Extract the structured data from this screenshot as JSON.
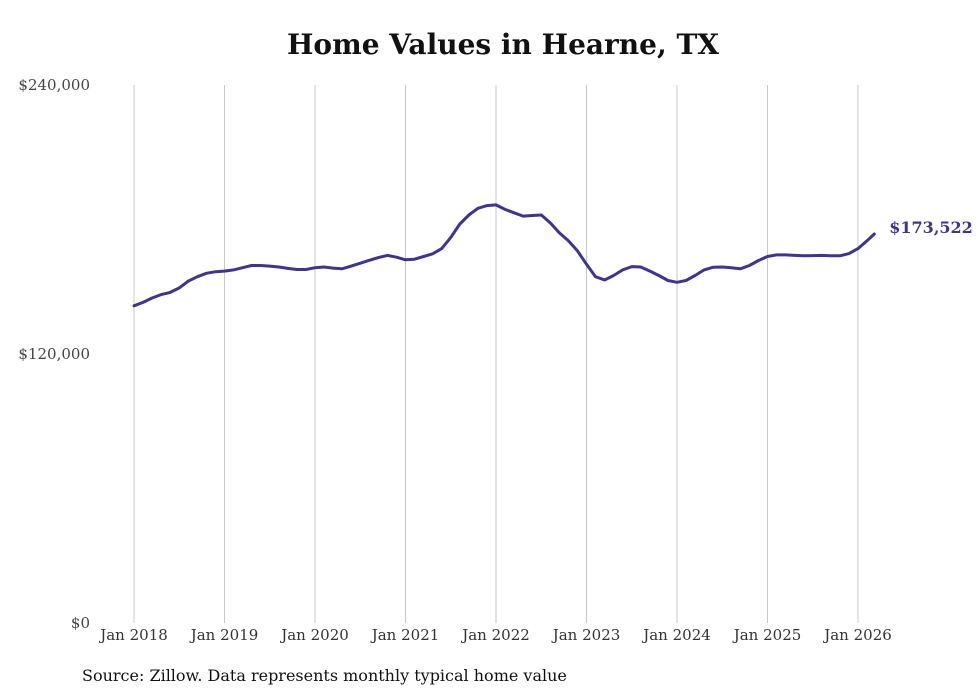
{
  "chart_data": {
    "type": "line",
    "title": "Home Values in Hearne, TX",
    "source": "Source: Zillow. Data represents monthly typical home value",
    "ylim": [
      0,
      240000
    ],
    "xlim": [
      2018.0,
      2026.0
    ],
    "y_ticks": [
      {
        "value": 0,
        "label": "$0"
      },
      {
        "value": 120000,
        "label": "$120,000"
      },
      {
        "value": 240000,
        "label": "$240,000"
      }
    ],
    "x_ticks": [
      {
        "value": 2018,
        "label": "Jan 2018"
      },
      {
        "value": 2019,
        "label": "Jan 2019"
      },
      {
        "value": 2020,
        "label": "Jan 2020"
      },
      {
        "value": 2021,
        "label": "Jan 2021"
      },
      {
        "value": 2022,
        "label": "Jan 2022"
      },
      {
        "value": 2023,
        "label": "Jan 2023"
      },
      {
        "value": 2024,
        "label": "Jan 2024"
      },
      {
        "value": 2025,
        "label": "Jan 2025"
      },
      {
        "value": 2026,
        "label": "Jan 2026"
      }
    ],
    "grid": "vertical",
    "series": [
      {
        "name": "Home value",
        "color": "#3d3591",
        "end_label": "$173,522",
        "points": [
          [
            2018.0,
            141500
          ],
          [
            2018.1,
            143000
          ],
          [
            2018.2,
            145000
          ],
          [
            2018.3,
            146500
          ],
          [
            2018.4,
            147500
          ],
          [
            2018.5,
            149500
          ],
          [
            2018.6,
            152500
          ],
          [
            2018.7,
            154500
          ],
          [
            2018.8,
            156000
          ],
          [
            2018.9,
            156700
          ],
          [
            2019.0,
            157000
          ],
          [
            2019.1,
            157500
          ],
          [
            2019.2,
            158500
          ],
          [
            2019.3,
            159500
          ],
          [
            2019.4,
            159500
          ],
          [
            2019.5,
            159200
          ],
          [
            2019.6,
            158800
          ],
          [
            2019.7,
            158200
          ],
          [
            2019.8,
            157700
          ],
          [
            2019.9,
            157700
          ],
          [
            2020.0,
            158500
          ],
          [
            2020.1,
            158800
          ],
          [
            2020.2,
            158300
          ],
          [
            2020.3,
            158000
          ],
          [
            2020.4,
            159200
          ],
          [
            2020.5,
            160500
          ],
          [
            2020.6,
            161800
          ],
          [
            2020.7,
            163000
          ],
          [
            2020.8,
            164000
          ],
          [
            2020.9,
            163200
          ],
          [
            2021.0,
            162000
          ],
          [
            2021.1,
            162300
          ],
          [
            2021.2,
            163500
          ],
          [
            2021.3,
            164700
          ],
          [
            2021.4,
            167000
          ],
          [
            2021.5,
            172000
          ],
          [
            2021.6,
            178000
          ],
          [
            2021.7,
            182000
          ],
          [
            2021.8,
            185000
          ],
          [
            2021.9,
            186200
          ],
          [
            2022.0,
            186500
          ],
          [
            2022.1,
            184500
          ],
          [
            2022.2,
            183000
          ],
          [
            2022.3,
            181500
          ],
          [
            2022.4,
            181800
          ],
          [
            2022.5,
            182000
          ],
          [
            2022.6,
            178500
          ],
          [
            2022.7,
            174000
          ],
          [
            2022.8,
            170500
          ],
          [
            2022.9,
            166000
          ],
          [
            2023.0,
            160000
          ],
          [
            2023.1,
            154500
          ],
          [
            2023.2,
            153000
          ],
          [
            2023.3,
            155000
          ],
          [
            2023.4,
            157500
          ],
          [
            2023.5,
            159000
          ],
          [
            2023.6,
            158800
          ],
          [
            2023.7,
            157000
          ],
          [
            2023.8,
            155000
          ],
          [
            2023.9,
            152800
          ],
          [
            2024.0,
            152000
          ],
          [
            2024.1,
            152800
          ],
          [
            2024.2,
            155000
          ],
          [
            2024.3,
            157500
          ],
          [
            2024.4,
            158700
          ],
          [
            2024.5,
            158800
          ],
          [
            2024.6,
            158500
          ],
          [
            2024.7,
            158000
          ],
          [
            2024.8,
            159500
          ],
          [
            2024.9,
            161700
          ],
          [
            2025.0,
            163500
          ],
          [
            2025.1,
            164200
          ],
          [
            2025.2,
            164200
          ],
          [
            2025.3,
            164000
          ],
          [
            2025.4,
            163800
          ],
          [
            2025.5,
            163900
          ],
          [
            2025.6,
            164000
          ],
          [
            2025.7,
            163800
          ],
          [
            2025.8,
            163800
          ],
          [
            2025.9,
            164800
          ],
          [
            2026.0,
            167000
          ],
          [
            2026.1,
            170500
          ],
          [
            2026.18,
            173522
          ]
        ]
      }
    ]
  }
}
